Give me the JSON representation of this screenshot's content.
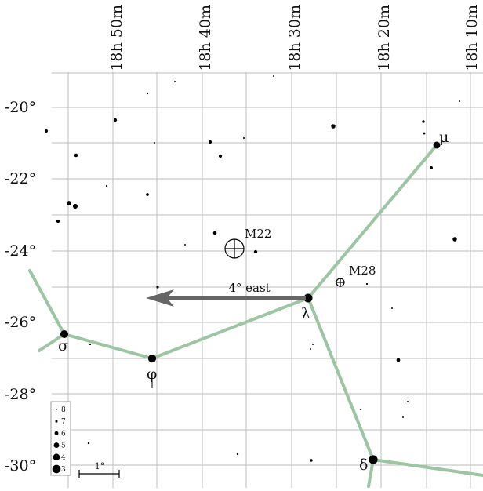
{
  "chart_data": {
    "type": "star-map",
    "ra_labels": [
      "18h 50m",
      "18h 40m",
      "18h 30m",
      "18h 20m",
      "18h 10m"
    ],
    "dec_labels": [
      "-20°",
      "-22°",
      "-24°",
      "-26°",
      "-28°",
      "-30°"
    ],
    "named_stars": [
      {
        "name": "μ",
        "mag": 3.9
      },
      {
        "name": "λ",
        "mag": 2.8
      },
      {
        "name": "σ",
        "mag": 3.3
      },
      {
        "name": "φ",
        "mag": 3.2
      },
      {
        "name": "δ",
        "mag": 2.7
      }
    ],
    "deep_sky": [
      {
        "name": "M22"
      },
      {
        "name": "M28"
      }
    ],
    "arrow": {
      "label": "4° east"
    },
    "magnitude_legend": [
      "8",
      "7",
      "6",
      "5",
      "4",
      "3"
    ],
    "scale_bar": {
      "label": "1°"
    }
  }
}
